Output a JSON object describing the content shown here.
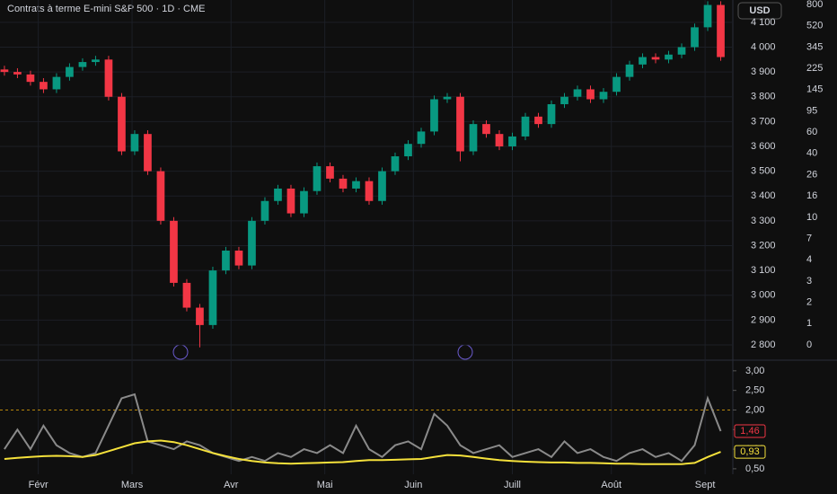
{
  "chart_data": [
    {
      "type": "candlestick",
      "title": "Contrats à terme E-mini S&P 500 · 1D · CME",
      "currency": "USD",
      "up_color": "#089981",
      "down_color": "#f23645",
      "xlim": [
        -0.34,
        55.86
      ],
      "xticks": [
        {
          "value": 2.6,
          "label": "Févr"
        },
        {
          "value": 9.8,
          "label": "Mars"
        },
        {
          "value": 17.4,
          "label": "Avr"
        },
        {
          "value": 24.6,
          "label": "Mai"
        },
        {
          "value": 31.4,
          "label": "Juin"
        },
        {
          "value": 39,
          "label": "Juill"
        },
        {
          "value": 46.6,
          "label": "Août"
        },
        {
          "value": 53.8,
          "label": "Sept"
        }
      ],
      "ylim": [
        2742,
        4190
      ],
      "yticks": [
        {
          "value": 4100,
          "label": "4 100"
        },
        {
          "value": 4000,
          "label": "4 000"
        },
        {
          "value": 3900,
          "label": "3 900"
        },
        {
          "value": 3800,
          "label": "3 800"
        },
        {
          "value": 3700,
          "label": "3 700"
        },
        {
          "value": 3600,
          "label": "3 600"
        },
        {
          "value": 3500,
          "label": "3 500"
        },
        {
          "value": 3400,
          "label": "3 400"
        },
        {
          "value": 3300,
          "label": "3 300"
        },
        {
          "value": 3200,
          "label": "3 200"
        },
        {
          "value": 3100,
          "label": "3 100"
        },
        {
          "value": 3000,
          "label": "3 000"
        },
        {
          "value": 2900,
          "label": "2 900"
        },
        {
          "value": 2800,
          "label": "2 800"
        }
      ],
      "y2ticks": [
        800,
        520,
        345,
        225,
        145,
        95,
        60,
        40,
        26,
        16,
        10,
        7,
        4,
        3,
        2,
        1,
        0
      ],
      "open": [
        3910,
        3900,
        3890,
        3860,
        3830,
        3880,
        3920,
        3940,
        3950,
        3800,
        3580,
        3650,
        3500,
        3300,
        3050,
        2950,
        2880,
        3100,
        3180,
        3120,
        3300,
        3380,
        3430,
        3330,
        3420,
        3520,
        3470,
        3430,
        3460,
        3380,
        3500,
        3560,
        3610,
        3660,
        3790,
        3800,
        3580,
        3690,
        3650,
        3600,
        3640,
        3720,
        3690,
        3770,
        3800,
        3830,
        3790,
        3820,
        3880,
        3930,
        3960,
        3950,
        3970,
        4000,
        4080,
        4170
      ],
      "high": [
        3925,
        3915,
        3905,
        3875,
        3895,
        3935,
        3955,
        3965,
        3965,
        3815,
        3665,
        3665,
        3515,
        3315,
        3065,
        2965,
        3115,
        3195,
        3195,
        3315,
        3395,
        3445,
        3445,
        3435,
        3535,
        3535,
        3485,
        3475,
        3475,
        3515,
        3575,
        3625,
        3675,
        3805,
        3815,
        3815,
        3705,
        3705,
        3665,
        3655,
        3735,
        3735,
        3785,
        3815,
        3845,
        3845,
        3835,
        3895,
        3945,
        3975,
        3975,
        3985,
        4015,
        4095,
        4185,
        4185
      ],
      "low": [
        3885,
        3875,
        3845,
        3815,
        3815,
        3865,
        3905,
        3925,
        3785,
        3565,
        3565,
        3485,
        3285,
        3035,
        2935,
        2790,
        2865,
        3085,
        3105,
        3105,
        3285,
        3365,
        3315,
        3315,
        3405,
        3455,
        3415,
        3415,
        3365,
        3365,
        3485,
        3545,
        3595,
        3645,
        3775,
        3540,
        3565,
        3635,
        3585,
        3585,
        3625,
        3675,
        3675,
        3755,
        3785,
        3775,
        3775,
        3805,
        3865,
        3915,
        3935,
        3935,
        3955,
        3985,
        4065,
        3945
      ],
      "close": [
        3900,
        3890,
        3860,
        3830,
        3880,
        3920,
        3940,
        3950,
        3800,
        3580,
        3650,
        3500,
        3300,
        3050,
        2950,
        2880,
        3100,
        3180,
        3120,
        3300,
        3380,
        3430,
        3330,
        3420,
        3520,
        3470,
        3430,
        3460,
        3380,
        3500,
        3560,
        3610,
        3660,
        3790,
        3800,
        3580,
        3690,
        3650,
        3600,
        3640,
        3720,
        3690,
        3770,
        3800,
        3830,
        3790,
        3820,
        3880,
        3930,
        3960,
        3950,
        3970,
        4000,
        4080,
        4170,
        3960
      ]
    },
    {
      "type": "line",
      "xlim": [
        -0.34,
        55.86
      ],
      "ylim": [
        0.36,
        3.18
      ],
      "yticks": [
        {
          "value": 3,
          "label": "3,00"
        },
        {
          "value": 2.5,
          "label": "2,50"
        },
        {
          "value": 2,
          "label": "2,00"
        },
        {
          "value": 1.5,
          "label": "1,50"
        },
        {
          "value": 1,
          "label": "1,00"
        },
        {
          "value": 0.5,
          "label": "0,50"
        }
      ],
      "level": 2,
      "series": [
        {
          "color": "#8a8a8a",
          "values": [
            1.0,
            1.5,
            1.0,
            1.6,
            1.1,
            0.9,
            0.8,
            0.9,
            1.6,
            2.3,
            2.4,
            1.2,
            1.1,
            1.0,
            1.2,
            1.1,
            0.9,
            0.8,
            0.7,
            0.8,
            0.7,
            0.9,
            0.8,
            1.0,
            0.9,
            1.1,
            0.9,
            1.6,
            1.0,
            0.8,
            1.1,
            1.2,
            1.0,
            1.9,
            1.6,
            1.1,
            0.9,
            1.0,
            1.1,
            0.8,
            0.9,
            1.0,
            0.8,
            1.2,
            0.9,
            1.0,
            0.8,
            0.7,
            0.9,
            1.0,
            0.8,
            0.9,
            0.7,
            1.1,
            2.3,
            1.46
          ],
          "last_label": "1,46",
          "badge": "#f23645"
        },
        {
          "color": "#f5e13b",
          "values": [
            0.75,
            0.78,
            0.8,
            0.82,
            0.83,
            0.82,
            0.8,
            0.85,
            0.95,
            1.05,
            1.15,
            1.2,
            1.22,
            1.18,
            1.1,
            1.0,
            0.9,
            0.82,
            0.75,
            0.7,
            0.66,
            0.64,
            0.63,
            0.64,
            0.65,
            0.66,
            0.67,
            0.7,
            0.72,
            0.72,
            0.73,
            0.74,
            0.75,
            0.8,
            0.85,
            0.84,
            0.8,
            0.76,
            0.72,
            0.7,
            0.68,
            0.67,
            0.66,
            0.66,
            0.65,
            0.65,
            0.64,
            0.63,
            0.63,
            0.62,
            0.62,
            0.62,
            0.62,
            0.65,
            0.8,
            0.93
          ],
          "last_label": "0,93",
          "badge": "#f5e13b"
        }
      ]
    }
  ]
}
